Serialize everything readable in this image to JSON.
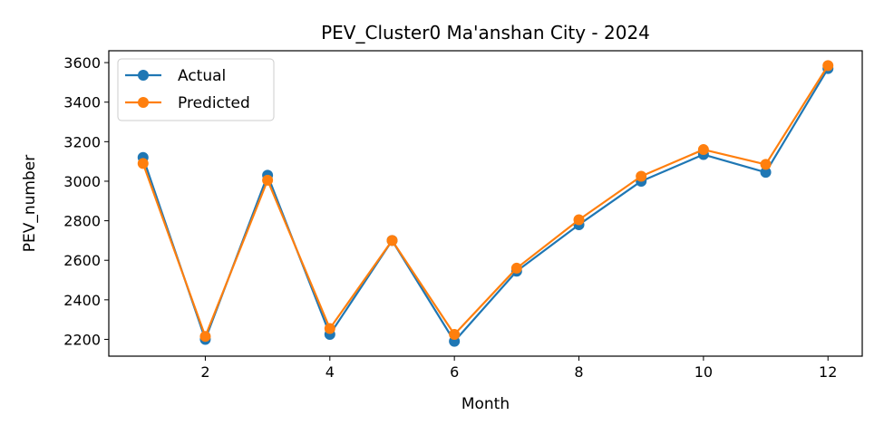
{
  "chart_data": {
    "type": "line",
    "title": "PEV_Cluster0 Ma'anshan City - 2024",
    "xlabel": "Month",
    "ylabel": "PEV_number",
    "x": [
      1,
      2,
      3,
      4,
      5,
      6,
      7,
      8,
      9,
      10,
      11,
      12
    ],
    "xlim": [
      0.45,
      12.55
    ],
    "ylim": [
      2115,
      3660
    ],
    "xticks": [
      2,
      4,
      6,
      8,
      10,
      12
    ],
    "yticks": [
      2200,
      2400,
      2600,
      2800,
      3000,
      3200,
      3400,
      3600
    ],
    "grid": false,
    "legend_position": "top-left",
    "series": [
      {
        "name": "Actual",
        "color": "#1f77b4",
        "marker": "circle",
        "values": [
          3120,
          2200,
          3030,
          2225,
          2700,
          2190,
          2545,
          2780,
          3000,
          3135,
          3045,
          3570
        ]
      },
      {
        "name": "Predicted",
        "color": "#ff7f0e",
        "marker": "circle",
        "values": [
          3090,
          2215,
          3005,
          2255,
          2700,
          2225,
          2560,
          2805,
          3025,
          3160,
          3085,
          3585
        ]
      }
    ]
  }
}
